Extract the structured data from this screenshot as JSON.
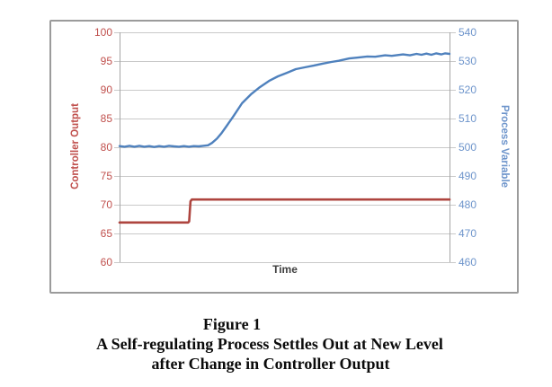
{
  "caption": {
    "line1": "Figure 1",
    "line2": "A Self-regulating Process Settles Out at New Level",
    "line3": "after Change in Controller Output"
  },
  "chart_data": {
    "type": "line",
    "title": "",
    "xlabel": "Time",
    "grid": true,
    "legend": "none",
    "left_axis": {
      "label": "Controller Output",
      "min": 60,
      "max": 100,
      "ticks": [
        100,
        95,
        90,
        85,
        80,
        75,
        70,
        65,
        60
      ],
      "label_color": "#c0504d",
      "tick_color": "#c0504d"
    },
    "right_axis": {
      "label": "Process Variable",
      "min": 460,
      "max": 540,
      "ticks": [
        540,
        530,
        520,
        510,
        500,
        490,
        480,
        470,
        460
      ],
      "label_color": "#6d94cb",
      "tick_color": "#6d94cb"
    },
    "colors": {
      "gridline": "#c9c9c9",
      "axis_line": "#a6a6a6",
      "frame_border": "#9b9b9b",
      "x_label_color": "#3f3f3f"
    },
    "series": [
      {
        "name": "Controller Output",
        "axis": "left",
        "color": "#ae453f",
        "width": 2.6,
        "points": [
          [
            0,
            66.9
          ],
          [
            5,
            66.9
          ],
          [
            10,
            66.9
          ],
          [
            15,
            66.9
          ],
          [
            20.8,
            66.9
          ],
          [
            21.1,
            67.1
          ],
          [
            21.5,
            70.6
          ],
          [
            21.9,
            70.9
          ],
          [
            30,
            70.9
          ],
          [
            45,
            70.9
          ],
          [
            60,
            70.9
          ],
          [
            80,
            70.9
          ],
          [
            100,
            70.9
          ]
        ]
      },
      {
        "name": "Process Variable",
        "axis": "right",
        "color": "#4f81bd",
        "width": 2.4,
        "points": [
          [
            0,
            500.4
          ],
          [
            1.5,
            500.2
          ],
          [
            3,
            500.5
          ],
          [
            4.5,
            500.2
          ],
          [
            6,
            500.5
          ],
          [
            7.5,
            500.2
          ],
          [
            9,
            500.4
          ],
          [
            10.5,
            500.1
          ],
          [
            12,
            500.4
          ],
          [
            13.5,
            500.2
          ],
          [
            15,
            500.5
          ],
          [
            16.5,
            500.3
          ],
          [
            18,
            500.2
          ],
          [
            19.5,
            500.4
          ],
          [
            21,
            500.2
          ],
          [
            22.5,
            500.4
          ],
          [
            24,
            500.3
          ],
          [
            25.3,
            500.5
          ],
          [
            26.8,
            500.7
          ],
          [
            28,
            501.5
          ],
          [
            29.5,
            503.0
          ],
          [
            30.9,
            504.9
          ],
          [
            32.5,
            507.5
          ],
          [
            34.4,
            510.6
          ],
          [
            37.1,
            515.3
          ],
          [
            39.8,
            518.4
          ],
          [
            42.5,
            520.9
          ],
          [
            45.3,
            523.1
          ],
          [
            48,
            524.7
          ],
          [
            50.7,
            525.9
          ],
          [
            53.4,
            527.2
          ],
          [
            56.1,
            527.8
          ],
          [
            58.8,
            528.4
          ],
          [
            61.5,
            529.1
          ],
          [
            64.2,
            529.7
          ],
          [
            66.4,
            530.1
          ],
          [
            69.6,
            530.9
          ],
          [
            72,
            531.2
          ],
          [
            75.1,
            531.6
          ],
          [
            77.5,
            531.5
          ],
          [
            80.5,
            532.0
          ],
          [
            82.5,
            531.8
          ],
          [
            85.9,
            532.3
          ],
          [
            88,
            532.0
          ],
          [
            90,
            532.5
          ],
          [
            91.5,
            532.2
          ],
          [
            93,
            532.6
          ],
          [
            94.5,
            532.2
          ],
          [
            96,
            532.7
          ],
          [
            97.5,
            532.3
          ],
          [
            98.7,
            532.7
          ],
          [
            100,
            532.5
          ]
        ]
      }
    ]
  }
}
